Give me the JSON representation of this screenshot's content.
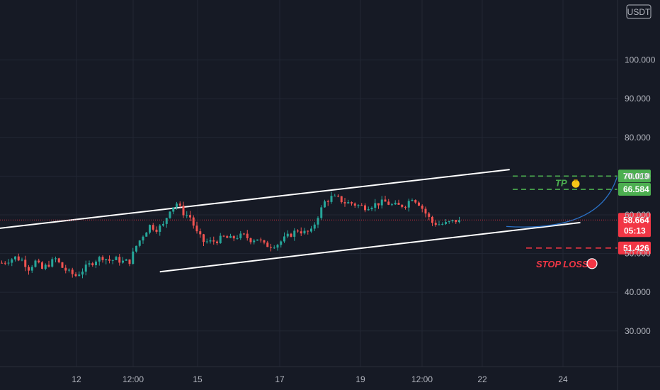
{
  "currency": "USDT",
  "chart_data": {
    "type": "candlestick",
    "x_ticks": [
      "12",
      "12:00",
      "15",
      "17",
      "19",
      "12:00",
      "22",
      "24"
    ],
    "y_ticks": [
      30,
      40,
      50,
      60,
      70,
      80,
      90,
      100
    ],
    "y_tick_labels": [
      "30.000",
      "40.000",
      "50.000",
      "60.000",
      "70.000",
      "80.000",
      "90.000",
      "100.000"
    ],
    "ylim": [
      20.8,
      115.5
    ],
    "grid": true,
    "price_path": [
      [
        0,
        47.6
      ],
      [
        4,
        49.0
      ],
      [
        6,
        48.3
      ],
      [
        8,
        46.2
      ],
      [
        10,
        47.9
      ],
      [
        12,
        46.0
      ],
      [
        14,
        47.3
      ],
      [
        16,
        48.6
      ],
      [
        18,
        46.4
      ],
      [
        20,
        45.1
      ],
      [
        22,
        44.3
      ],
      [
        24,
        45.7
      ],
      [
        26,
        47.1
      ],
      [
        28,
        48.4
      ],
      [
        30,
        49.1
      ],
      [
        32,
        48.2
      ],
      [
        34,
        48.5
      ],
      [
        36,
        47.9
      ],
      [
        38,
        48.0
      ],
      [
        40,
        52.0
      ],
      [
        42,
        54.8
      ],
      [
        44,
        57.2
      ],
      [
        46,
        56.4
      ],
      [
        48,
        57.3
      ],
      [
        50,
        61.5
      ],
      [
        52,
        63.0
      ],
      [
        54,
        60.5
      ],
      [
        56,
        59.4
      ],
      [
        58,
        55.3
      ],
      [
        60,
        53.1
      ],
      [
        62,
        53.0
      ],
      [
        64,
        53.4
      ],
      [
        66,
        54.2
      ],
      [
        68,
        53.8
      ],
      [
        70,
        54.4
      ],
      [
        72,
        54.6
      ],
      [
        74,
        53.6
      ],
      [
        76,
        53.9
      ],
      [
        78,
        52.2
      ],
      [
        80,
        52.1
      ],
      [
        82,
        52.5
      ],
      [
        84,
        53.8
      ],
      [
        86,
        55.0
      ],
      [
        88,
        56.1
      ],
      [
        90,
        55.4
      ],
      [
        92,
        55.7
      ],
      [
        94,
        59.8
      ],
      [
        96,
        63.3
      ],
      [
        98,
        64.5
      ],
      [
        100,
        64.2
      ],
      [
        102,
        63.2
      ],
      [
        104,
        63.0
      ],
      [
        106,
        62.4
      ],
      [
        108,
        62.0
      ],
      [
        110,
        62.5
      ],
      [
        112,
        63.0
      ],
      [
        114,
        63.3
      ],
      [
        116,
        62.5
      ],
      [
        118,
        62.3
      ],
      [
        120,
        62.6
      ],
      [
        122,
        64.5
      ],
      [
        124,
        63.0
      ],
      [
        126,
        60.4
      ],
      [
        128,
        58.0
      ],
      [
        130,
        57.6
      ],
      [
        132,
        57.7
      ],
      [
        134,
        58.3
      ],
      [
        136,
        58.664
      ]
    ],
    "trend_lines": [
      {
        "from": [
          -6,
          56.0
        ],
        "to": [
          151,
          71.7
        ],
        "color": "#ffffff"
      },
      {
        "from": [
          47,
          45.3
        ],
        "to": [
          172,
          58.0
        ],
        "color": "#ffffff"
      }
    ],
    "projection_curve": {
      "from": [
        150,
        57.0
      ],
      "control": [
        178,
        55.5
      ],
      "to": [
        183,
        70.019
      ],
      "color": "#2a71c6"
    },
    "levels": [
      {
        "value": 70.019,
        "label": "70.019",
        "color": "#4caf50",
        "style": "dashed",
        "annotation": "TP",
        "icon": "money-bag-icon"
      },
      {
        "value": 66.584,
        "label": "66.584",
        "color": "#4caf50",
        "style": "dashed"
      },
      {
        "value": 58.664,
        "label": "58.664",
        "color": "#f23645",
        "style": "dotted",
        "countdown": "05:13"
      },
      {
        "value": 51.426,
        "label": "51.426",
        "color": "#f23645",
        "style": "dashed",
        "annotation": "STOP LOSS",
        "icon": "stop-sign-icon"
      }
    ]
  }
}
